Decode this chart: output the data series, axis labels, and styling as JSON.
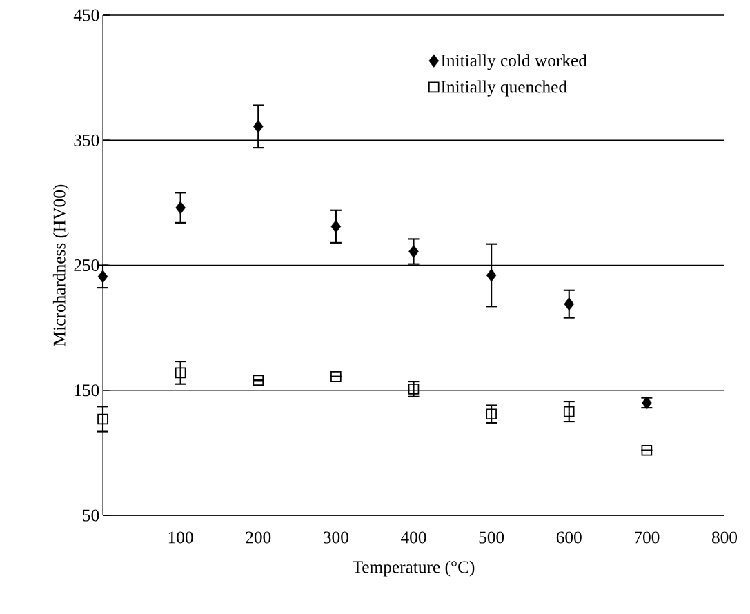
{
  "chart_data": {
    "type": "scatter",
    "xlabel": "Temperature (°C)",
    "ylabel": "Microhardness (HV00)",
    "xlim": [
      0,
      800
    ],
    "xticks": [
      100,
      200,
      300,
      400,
      500,
      600,
      700,
      800
    ],
    "ylim": [
      50,
      450
    ],
    "yticks": [
      50,
      150,
      250,
      350,
      450
    ],
    "grid": "y",
    "legend": "top right",
    "x": [
      0,
      100,
      200,
      300,
      400,
      500,
      600,
      700
    ],
    "series": [
      {
        "name": "Initially cold worked",
        "color": "#000000",
        "marker": "diamond",
        "values": [
          241,
          296,
          361,
          281,
          261,
          242,
          219,
          140
        ],
        "errors": [
          9,
          12,
          17,
          13,
          10,
          25,
          11,
          4
        ]
      },
      {
        "name": "Initially quenched",
        "color": "#000000",
        "marker": "square",
        "values": [
          127,
          164,
          158,
          161,
          151,
          131,
          133,
          102
        ],
        "errors": [
          10,
          9,
          null,
          null,
          6,
          7,
          8,
          null
        ]
      }
    ]
  }
}
